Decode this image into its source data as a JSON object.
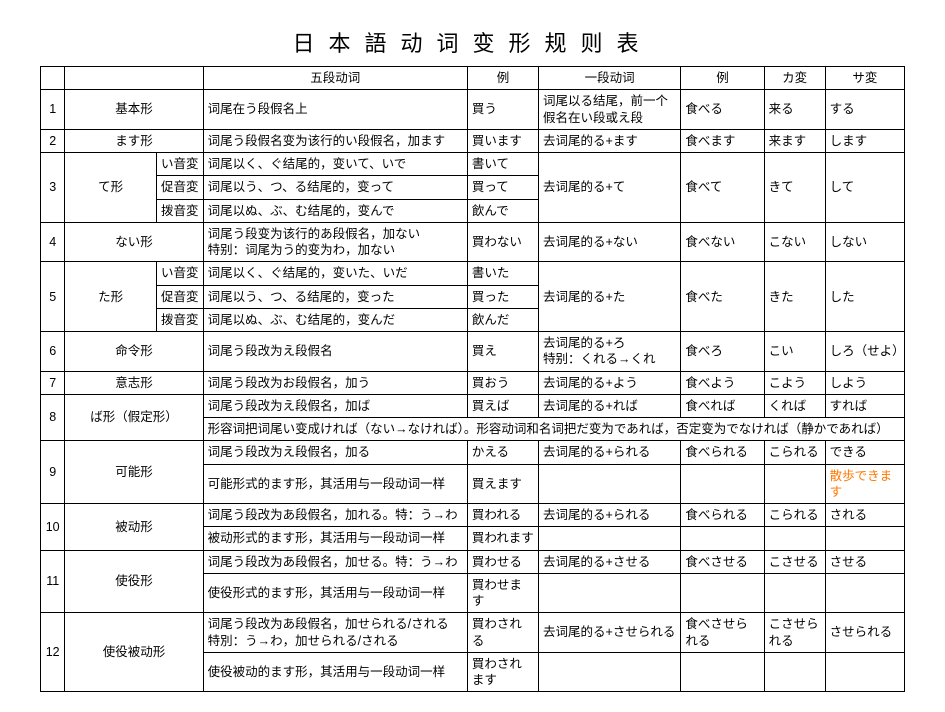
{
  "title": "日本語动词变形规则表",
  "headers": {
    "num": "",
    "name": "",
    "sub": "",
    "godan": "五段动词",
    "ex1": "例",
    "ichidan": "一段动词",
    "ex2": "例",
    "ka": "カ変",
    "sa": "サ変"
  },
  "rows": {
    "r1": {
      "n": "1",
      "name": "基本形",
      "godan": "词尾在う段假名上",
      "ex1": "買う",
      "ichi": "词尾以る结尾，前一个假名在い段或え段",
      "ex2": "食べる",
      "ka": "来る",
      "sa": "する"
    },
    "r2": {
      "n": "2",
      "name": "ます形",
      "godan": "词尾う段假名变为该行的い段假名，加ます",
      "ex1": "買います",
      "ichi": "去词尾的る+ます",
      "ex2": "食べます",
      "ka": "来ます",
      "sa": "します"
    },
    "r3": {
      "n": "3",
      "name": "て形",
      "sub1": "い音変",
      "g1": "词尾以く、ぐ结尾的，变いて、いで",
      "e1": "書いて",
      "sub2": "促音変",
      "g2": "词尾以う、つ、る结尾的，变って",
      "e2": "買って",
      "sub3": "拨音変",
      "g3": "词尾以ぬ、ぶ、む结尾的，变んで",
      "e3": "飲んで",
      "ichi": "去词尾的る+て",
      "ex2": "食べて",
      "ka": "きて",
      "sa": "して"
    },
    "r4": {
      "n": "4",
      "name": "ない形",
      "godan": "词尾う段变为该行的あ段假名，加ない\n特别：词尾为う的变为わ，加ない",
      "ex1": "買わない",
      "ichi": "去词尾的る+ない",
      "ex2": "食べない",
      "ka": "こない",
      "sa": "しない"
    },
    "r5": {
      "n": "5",
      "name": "た形",
      "sub1": "い音変",
      "g1": "词尾以く、ぐ结尾的，变いた、いだ",
      "e1": "書いた",
      "sub2": "促音変",
      "g2": "词尾以う、つ、る结尾的，变った",
      "e2": "買った",
      "sub3": "拨音変",
      "g3": "词尾以ぬ、ぶ、む结尾的，变んだ",
      "e3": "飲んだ",
      "ichi": "去词尾的る+た",
      "ex2": "食べた",
      "ka": "きた",
      "sa": "した"
    },
    "r6": {
      "n": "6",
      "name": "命令形",
      "godan": "词尾う段改为え段假名",
      "ex1": "買え",
      "ichi": "去词尾的る+ろ\n特别：くれる→くれ",
      "ex2": "食べろ",
      "ka": "こい",
      "sa": "しろ（せよ）"
    },
    "r7": {
      "n": "7",
      "name": "意志形",
      "godan": "词尾う段改为お段假名，加う",
      "ex1": "買おう",
      "ichi": "去词尾的る+よう",
      "ex2": "食べよう",
      "ka": "こよう",
      "sa": "しよう"
    },
    "r8": {
      "n": "8",
      "name": "ば形（假定形）",
      "g1": "词尾う段改为え段假名，加ば",
      "e1": "買えば",
      "ichi": "去词尾的る+れば",
      "ex2": "食べれば",
      "ka": "くれば",
      "sa": "すれば",
      "note": "形容词把词尾い变成ければ（ない→なければ）。形容动词和名词把だ变为であれば，否定变为でなければ（静かであれば）"
    },
    "r9": {
      "n": "9",
      "name": "可能形",
      "g1": "词尾う段改为え段假名，加る",
      "e1": "かえる",
      "ichi": "去词尾的る+られる",
      "ex2": "食べられる",
      "ka": "こられる",
      "sa1": "できる",
      "g2": "可能形式的ます形，其活用与一段动词一样",
      "e2": "買えます",
      "sa2": "散歩できます"
    },
    "r10": {
      "n": "10",
      "name": "被动形",
      "g1": "词尾う段改为あ段假名，加れる。特：う→わ",
      "e1": "買われる",
      "ichi": "去词尾的る+られる",
      "ex2": "食べられる",
      "ka": "こられる",
      "sa": "される",
      "g2": "被动形式的ます形，其活用与一段动词一样",
      "e2": "買われます"
    },
    "r11": {
      "n": "11",
      "name": "使役形",
      "g1": "词尾う段改为あ段假名，加せる。特：う→わ",
      "e1": "買わせる",
      "ichi": "去词尾的る+させる",
      "ex2": "食べさせる",
      "ka": "こさせる",
      "sa": "させる",
      "g2": "使役形式的ます形，其活用与一段动词一样",
      "e2": "買わせます"
    },
    "r12": {
      "n": "12",
      "name": "使役被动形",
      "g1": "词尾う段改为あ段假名，加せられる/される\n特別：う→わ，加せられる/される",
      "e1": "買わされる",
      "ichi": "去词尾的る+させられる",
      "ex2": "食べさせられる",
      "ka": "こさせられる",
      "sa": "させられる",
      "g2": "使役被动的ます形，其活用与一段动词一样",
      "e2": "買わされます"
    }
  }
}
